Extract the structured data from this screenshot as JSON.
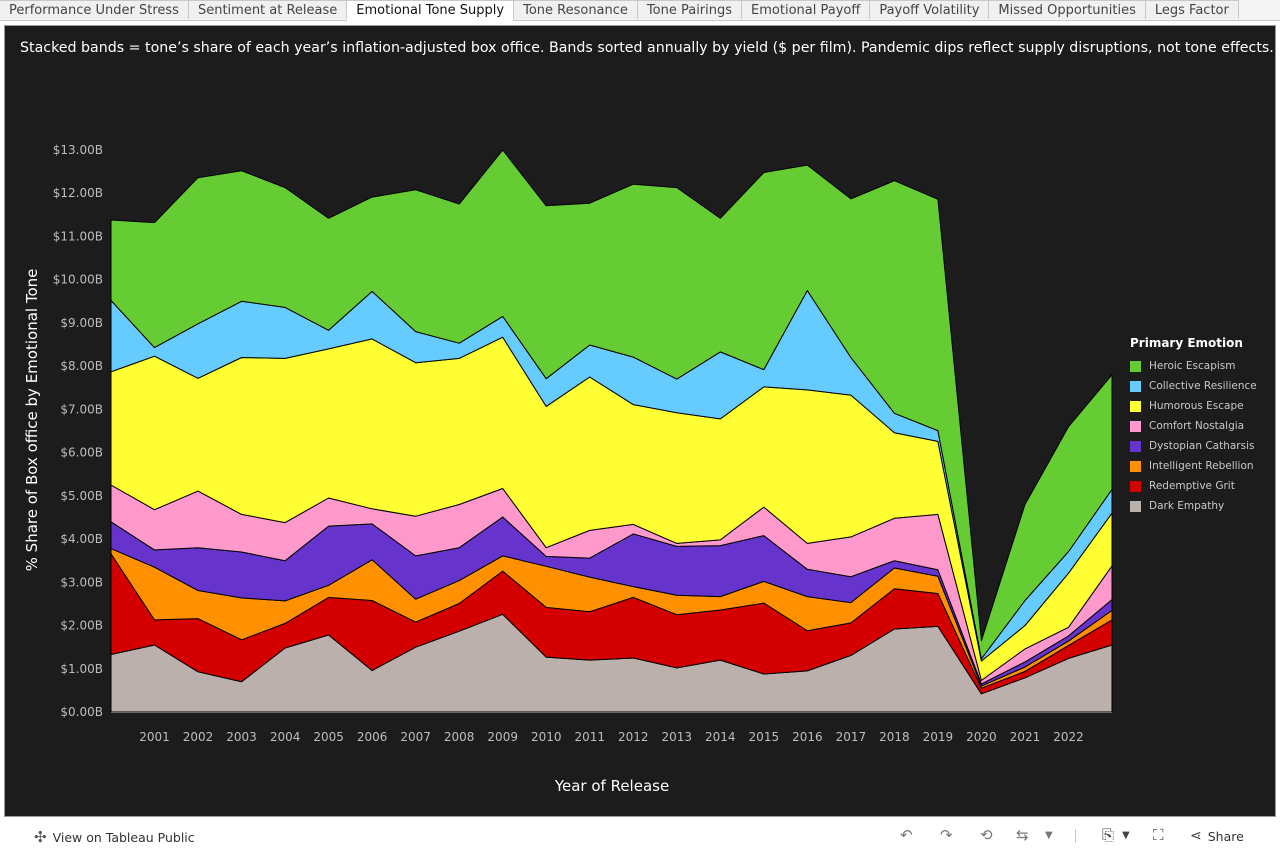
{
  "tabs": [
    {
      "label": "Performance Under Stress",
      "active": false
    },
    {
      "label": "Sentiment at Release",
      "active": false
    },
    {
      "label": "Emotional Tone Supply",
      "active": true
    },
    {
      "label": "Tone Resonance",
      "active": false
    },
    {
      "label": "Tone Pairings",
      "active": false
    },
    {
      "label": "Emotional Payoff",
      "active": false
    },
    {
      "label": "Payoff Volatility",
      "active": false
    },
    {
      "label": "Missed Opportunities",
      "active": false
    },
    {
      "label": "Legs Factor",
      "active": false
    }
  ],
  "caption": "Stacked bands = tone’s share of each year’s inflation-adjusted box office. Bands sorted annually by yield ($ per film). Pandemic dips reflect supply disruptions, not tone effects.",
  "chart_data": {
    "type": "area",
    "stacked": true,
    "xlabel": "Year of Release",
    "ylabel": "% Share of Box office by Emotional Tone",
    "x": [
      2000,
      2001,
      2002,
      2003,
      2004,
      2005,
      2006,
      2007,
      2008,
      2009,
      2010,
      2011,
      2012,
      2013,
      2014,
      2015,
      2016,
      2017,
      2018,
      2019,
      2020,
      2021,
      2022,
      2023
    ],
    "x_tick_labels": [
      "2001",
      "2002",
      "2003",
      "2004",
      "2005",
      "2006",
      "2007",
      "2008",
      "2009",
      "2010",
      "2011",
      "2012",
      "2013",
      "2014",
      "2015",
      "2016",
      "2017",
      "2018",
      "2019",
      "2020",
      "2021",
      "2022"
    ],
    "ylim": [
      0,
      13
    ],
    "y_tick_labels": [
      "$0.00B",
      "$1.00B",
      "$2.00B",
      "$3.00B",
      "$4.00B",
      "$5.00B",
      "$6.00B",
      "$7.00B",
      "$8.00B",
      "$9.00B",
      "$10.00B",
      "$11.00B",
      "$12.00B",
      "$13.00B"
    ],
    "grid": false,
    "legend_title": "Primary Emotion",
    "legend_position": "right",
    "series": [
      {
        "name": "Dark Empathy",
        "color": "#bbb0ac",
        "values": [
          1.33,
          1.55,
          0.93,
          0.7,
          1.48,
          1.78,
          0.96,
          1.5,
          1.87,
          2.26,
          1.27,
          1.2,
          1.25,
          1.02,
          1.2,
          0.88,
          0.95,
          1.31,
          1.92,
          1.98,
          0.42,
          0.79,
          1.24,
          1.55
        ]
      },
      {
        "name": "Redemptive Grit",
        "color": "#d40000",
        "values": [
          2.33,
          0.58,
          1.23,
          0.97,
          0.57,
          0.87,
          1.62,
          0.58,
          0.64,
          1.0,
          1.15,
          1.12,
          1.4,
          1.23,
          1.16,
          1.64,
          0.93,
          0.75,
          0.93,
          0.76,
          0.13,
          0.15,
          0.3,
          0.58
        ]
      },
      {
        "name": "Intelligent Rebellion",
        "color": "#ff9100",
        "values": [
          0.12,
          1.22,
          0.65,
          0.97,
          0.52,
          0.28,
          0.94,
          0.53,
          0.53,
          0.35,
          0.95,
          0.8,
          0.25,
          0.45,
          0.31,
          0.5,
          0.79,
          0.47,
          0.48,
          0.4,
          0.05,
          0.1,
          0.1,
          0.22
        ]
      },
      {
        "name": "Dystopian Catharsis",
        "color": "#6633cc",
        "values": [
          0.62,
          0.4,
          0.99,
          1.06,
          0.93,
          1.37,
          0.83,
          1.0,
          0.76,
          0.9,
          0.23,
          0.44,
          1.22,
          1.13,
          1.18,
          1.06,
          0.63,
          0.6,
          0.17,
          0.15,
          0.05,
          0.12,
          0.12,
          0.25
        ]
      },
      {
        "name": "Comfort Nostalgia",
        "color": "#ff99cc",
        "values": [
          0.85,
          0.93,
          1.31,
          0.87,
          0.88,
          0.65,
          0.35,
          0.92,
          1.0,
          0.66,
          0.2,
          0.64,
          0.22,
          0.07,
          0.13,
          0.66,
          0.6,
          0.92,
          0.98,
          1.28,
          0.08,
          0.3,
          0.2,
          0.78
        ]
      },
      {
        "name": "Humorous Escape",
        "color": "#ffff33",
        "values": [
          2.62,
          3.55,
          2.61,
          3.63,
          3.8,
          3.45,
          3.93,
          3.55,
          3.38,
          3.5,
          3.27,
          3.55,
          2.77,
          3.02,
          2.8,
          2.78,
          3.55,
          3.28,
          1.98,
          1.69,
          0.45,
          0.54,
          1.25,
          1.22
        ]
      },
      {
        "name": "Collective Resilience",
        "color": "#66ccff",
        "values": [
          1.65,
          0.2,
          1.26,
          1.3,
          1.18,
          0.43,
          1.1,
          0.72,
          0.35,
          0.48,
          0.64,
          0.74,
          1.1,
          0.78,
          1.55,
          0.4,
          2.3,
          0.87,
          0.45,
          0.25,
          0.05,
          0.58,
          0.5,
          0.55
        ]
      },
      {
        "name": "Heroic Escapism",
        "color": "#66cc33",
        "values": [
          1.86,
          2.89,
          3.38,
          3.02,
          2.77,
          2.59,
          2.18,
          3.28,
          3.22,
          3.85,
          4.0,
          3.28,
          4.0,
          4.43,
          3.09,
          4.56,
          2.9,
          3.67,
          5.38,
          5.35,
          0.42,
          2.22,
          2.89,
          2.65
        ]
      }
    ]
  },
  "footer": {
    "view_label": "View on Tableau Public",
    "share_label": "Share"
  }
}
